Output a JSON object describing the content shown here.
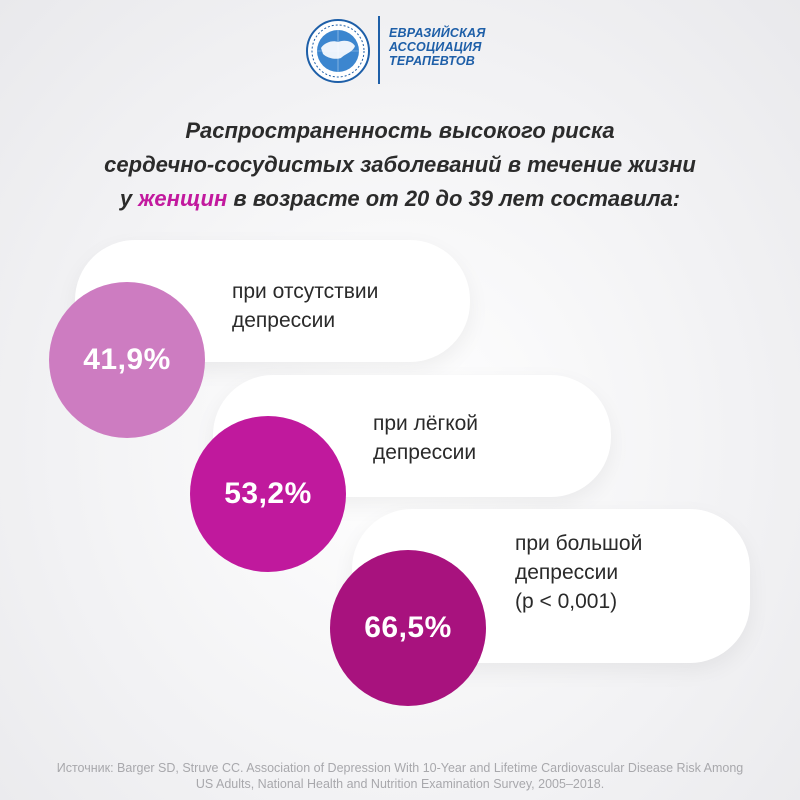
{
  "logo": {
    "emblem_icon": "globe-emblem-icon",
    "line1": "ЕВРАЗИЙСКАЯ",
    "line2": "АССОЦИАЦИЯ",
    "line3": "ТЕРАПЕВТОВ",
    "color": "#1e5fa8"
  },
  "title": {
    "line1": "Распространенность высокого риска",
    "line2": "сердечно-сосудистых заболеваний в течение жизни",
    "line3_pre": "у ",
    "line3_accent": "женщин",
    "line3_post": " в возрасте от 20 до 39 лет составила:",
    "accent_color": "#c2199e"
  },
  "items": [
    {
      "value": "41,9%",
      "label_lines": [
        "при отсутствии",
        "депрессии"
      ],
      "color": "#cd7cc1"
    },
    {
      "value": "53,2%",
      "label_lines": [
        "при лёгкой",
        "депрессии"
      ],
      "color": "#c0199d"
    },
    {
      "value": "66,5%",
      "label_lines": [
        "при большой",
        "депрессии",
        "(p < 0,001)"
      ],
      "color": "#a8127e"
    }
  ],
  "source": {
    "line1": "Источник: Barger SD, Struve CC. Association of Depression With 10-Year and Lifetime Cardiovascular Disease Risk Among",
    "line2": "US Adults, National Health and Nutrition Examination Survey, 2005–2018."
  }
}
